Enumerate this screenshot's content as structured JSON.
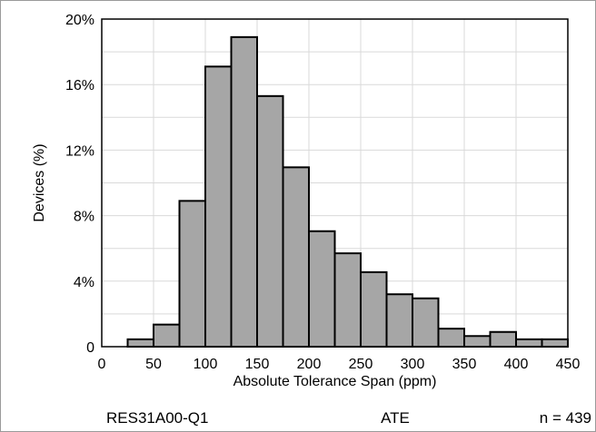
{
  "chart_data": {
    "type": "bar",
    "title": "",
    "xlabel": "Absolute Tolerance Span (ppm)",
    "ylabel": "Devices (%)",
    "xlim": [
      0,
      450
    ],
    "ylim": [
      0,
      20
    ],
    "x_ticks": [
      0,
      50,
      100,
      150,
      200,
      250,
      300,
      350,
      400,
      450
    ],
    "y_ticks": [
      {
        "value": 0,
        "label": "0"
      },
      {
        "value": 4,
        "label": "4%"
      },
      {
        "value": 8,
        "label": "8%"
      },
      {
        "value": 12,
        "label": "12%"
      },
      {
        "value": 16,
        "label": "16%"
      },
      {
        "value": 20,
        "label": "20%"
      }
    ],
    "grid": true,
    "bin_width": 25,
    "bin_starts": [
      25,
      50,
      75,
      100,
      125,
      150,
      175,
      200,
      225,
      250,
      275,
      300,
      325,
      350,
      375,
      400,
      425
    ],
    "values": [
      0.45,
      1.35,
      8.9,
      17.1,
      18.9,
      15.3,
      10.95,
      7.05,
      5.7,
      4.55,
      3.2,
      2.95,
      1.1,
      0.65,
      0.9,
      0.45,
      0.45
    ],
    "bar_color": "#a6a6a6",
    "bar_edge_color": "#000000"
  },
  "footer": {
    "device": "RES31A00-Q1",
    "method": "ATE",
    "sample_size": "n = 439"
  }
}
